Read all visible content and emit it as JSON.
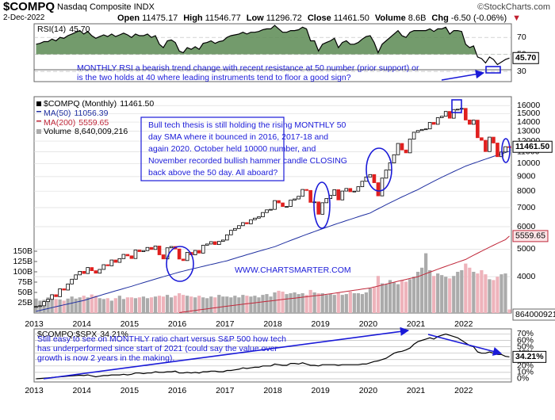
{
  "header": {
    "symbol": "$COMPQ",
    "name": "Nasdaq Composite INDX",
    "date": "2-Dec-2022",
    "quote": [
      {
        "label": "Open",
        "value": "11475.17"
      },
      {
        "label": "High",
        "value": "11546.77"
      },
      {
        "label": "Low",
        "value": "11296.72"
      },
      {
        "label": "Close",
        "value": "11461.50"
      },
      {
        "label": "Volume",
        "value": "8.6B"
      },
      {
        "label": "Chg",
        "value": "-6.50 (-0.06%)"
      }
    ],
    "credit": "©StockCharts.com"
  },
  "chart_data": [
    {
      "type": "line",
      "ylim": [
        18,
        86
      ],
      "yticks": [
        30,
        50,
        70
      ],
      "fill_color": "#5b8a52",
      "series": [
        {
          "name": "RSI(14)",
          "color": "#000000",
          "value_label": "45.70",
          "values": [
            62,
            63,
            65,
            65,
            68,
            66,
            70,
            69,
            72,
            74,
            76,
            78,
            74,
            77,
            72,
            69,
            71,
            73,
            71,
            74,
            71,
            73,
            75,
            73,
            70,
            74,
            72,
            72,
            74,
            70,
            72,
            62,
            58,
            66,
            67,
            64,
            54,
            52,
            58,
            56,
            59,
            56,
            63,
            64,
            66,
            63,
            65,
            66,
            70,
            72,
            73,
            74,
            76,
            74,
            76,
            76,
            77,
            79,
            80,
            80,
            84,
            80,
            76,
            76,
            78,
            78,
            79,
            82,
            80,
            66,
            66,
            54,
            62,
            64,
            66,
            69,
            58,
            64,
            66,
            62,
            62,
            64,
            68,
            71,
            72,
            64,
            52,
            62,
            66,
            70,
            74,
            78,
            72,
            70,
            76,
            78,
            78,
            78,
            78,
            80,
            77,
            80,
            80,
            82,
            74,
            78,
            78,
            77,
            62,
            58,
            60,
            47,
            45,
            40,
            47,
            44,
            38,
            41,
            44,
            45.7
          ]
        }
      ],
      "annotation": [
        "MONTHLY RSI a bearish trend change with recent resistance at 50 number (prior support) or",
        "is the two holds at 40 where leading instruments tend to floor a good sign?"
      ]
    },
    {
      "type": "candlestick",
      "log_scale": true,
      "grid": true,
      "ylim": [
        2980,
        17200
      ],
      "yticks": [
        4000,
        5000,
        6000,
        7000,
        8000,
        9000,
        10000,
        11000,
        12000,
        13000,
        14000,
        15000,
        16000
      ],
      "y2lim": [
        0,
        525
      ],
      "y2ticks": [
        {
          "value": 25,
          "label": "25B"
        },
        {
          "value": 50,
          "label": "50B"
        },
        {
          "value": 75,
          "label": "75B"
        },
        {
          "value": 100,
          "label": "100B"
        },
        {
          "value": 125,
          "label": "125B"
        },
        {
          "value": 150,
          "label": "150B"
        }
      ],
      "categories": [
        "2013",
        null,
        null,
        null,
        null,
        null,
        null,
        null,
        null,
        null,
        null,
        null,
        "2014",
        null,
        null,
        null,
        null,
        null,
        null,
        null,
        null,
        null,
        null,
        null,
        "2015",
        null,
        null,
        null,
        null,
        null,
        null,
        null,
        null,
        null,
        null,
        null,
        "2016",
        null,
        null,
        null,
        null,
        null,
        null,
        null,
        null,
        null,
        null,
        null,
        "2017",
        null,
        null,
        null,
        null,
        null,
        null,
        null,
        null,
        null,
        null,
        null,
        "2018",
        null,
        null,
        null,
        null,
        null,
        null,
        null,
        null,
        null,
        null,
        null,
        "2019",
        null,
        null,
        null,
        null,
        null,
        null,
        null,
        null,
        null,
        null,
        null,
        "2020",
        null,
        null,
        null,
        null,
        null,
        null,
        null,
        null,
        null,
        null,
        null,
        "2021",
        null,
        null,
        null,
        null,
        null,
        null,
        null,
        null,
        null,
        null,
        null,
        "2022",
        null,
        null,
        null,
        null,
        null,
        null,
        null,
        null,
        null,
        null,
        null
      ],
      "series": [
        {
          "name": "$COMPQ (Monthly)",
          "value_label": "11461.50",
          "color": "#000000",
          "down_color": "#e0201f",
          "values": [
            3142,
            3160,
            3268,
            3329,
            3456,
            3403,
            3626,
            3590,
            3771,
            3920,
            4060,
            4177,
            4104,
            4308,
            4199,
            4115,
            4243,
            4408,
            4370,
            4580,
            4493,
            4631,
            4792,
            4736,
            4635,
            4964,
            4901,
            4941,
            5070,
            4987,
            5128,
            4777,
            4620,
            5054,
            5109,
            5007,
            4614,
            4558,
            4870,
            4775,
            4948,
            4843,
            5162,
            5213,
            5312,
            5189,
            5324,
            5383,
            5615,
            5825,
            5912,
            6048,
            6199,
            6140,
            6348,
            6429,
            6496,
            6728,
            6874,
            6903,
            7411,
            7273,
            7063,
            7066,
            7442,
            7510,
            7672,
            8110,
            8046,
            7306,
            7331,
            6635,
            7282,
            7533,
            7729,
            8095,
            7453,
            8006,
            8175,
            7963,
            7999,
            8292,
            8665,
            8973,
            9151,
            8567,
            7700,
            8890,
            9490,
            10059,
            10745,
            11775,
            11168,
            10912,
            12199,
            12888,
            13071,
            13192,
            13247,
            13962,
            13749,
            14504,
            14673,
            15259,
            14449,
            15498,
            15538,
            15645,
            14240,
            13751,
            14221,
            12335,
            12081,
            11028,
            12391,
            11816,
            10576,
            10988,
            11468,
            11461.5
          ]
        },
        {
          "name": "MA(50)",
          "value_label": "11056.39",
          "color": "#1f2fa0",
          "values": [
            3020,
            3043,
            3067,
            3090,
            3113,
            3137,
            3160,
            3183,
            3207,
            3230,
            3253,
            3277,
            3300,
            3333,
            3367,
            3400,
            3433,
            3467,
            3500,
            3533,
            3567,
            3600,
            3633,
            3667,
            3700,
            3738,
            3775,
            3813,
            3850,
            3888,
            3925,
            3963,
            4000,
            4038,
            4075,
            4113,
            4150,
            4183,
            4217,
            4250,
            4283,
            4317,
            4350,
            4383,
            4417,
            4450,
            4483,
            4517,
            4550,
            4596,
            4642,
            4688,
            4733,
            4779,
            4825,
            4871,
            4917,
            4963,
            5008,
            5054,
            5100,
            5167,
            5233,
            5300,
            5367,
            5433,
            5500,
            5567,
            5633,
            5700,
            5767,
            5833,
            5900,
            5967,
            6033,
            6100,
            6167,
            6233,
            6300,
            6367,
            6433,
            6500,
            6567,
            6633,
            6700,
            6817,
            6933,
            7050,
            7167,
            7283,
            7400,
            7517,
            7633,
            7750,
            7867,
            7983,
            8100,
            8242,
            8383,
            8525,
            8667,
            8808,
            8950,
            9092,
            9233,
            9375,
            9517,
            9658,
            9800,
            9914,
            10028,
            10142,
            10256,
            10370,
            10484,
            10598,
            10712,
            10826,
            10940,
            11056.39
          ]
        },
        {
          "name": "MA(200)",
          "value_label": "5559.65",
          "color": "#c0283a",
          "values": [
            null,
            null,
            null,
            null,
            null,
            null,
            null,
            null,
            null,
            null,
            null,
            null,
            null,
            null,
            null,
            null,
            null,
            null,
            null,
            null,
            null,
            null,
            null,
            null,
            null,
            null,
            null,
            null,
            null,
            null,
            null,
            null,
            null,
            null,
            null,
            null,
            2990,
            3003,
            3017,
            3030,
            3043,
            3057,
            3070,
            3083,
            3097,
            3110,
            3123,
            3137,
            3150,
            3163,
            3175,
            3188,
            3200,
            3213,
            3225,
            3238,
            3250,
            3263,
            3275,
            3288,
            3300,
            3313,
            3325,
            3338,
            3350,
            3363,
            3375,
            3388,
            3400,
            3413,
            3425,
            3438,
            3450,
            3467,
            3483,
            3500,
            3517,
            3533,
            3550,
            3567,
            3583,
            3600,
            3617,
            3633,
            3650,
            3679,
            3708,
            3738,
            3767,
            3796,
            3825,
            3854,
            3883,
            3913,
            3942,
            3971,
            4000,
            4050,
            4100,
            4150,
            4200,
            4250,
            4300,
            4350,
            4400,
            4450,
            4500,
            4550,
            4600,
            4680,
            4760,
            4840,
            4920,
            5000,
            5080,
            5160,
            5240,
            5320,
            5400,
            5559.65
          ]
        },
        {
          "name": "Volume",
          "value_label": "8,640,009,216",
          "side_label": "8640009216",
          "axis": "y2",
          "color": "#ababab",
          "down_color": "#eeb3bb",
          "values": [
            35,
            30,
            32,
            38,
            36,
            34,
            33,
            30,
            35,
            40,
            35,
            38,
            42,
            38,
            45,
            42,
            36,
            34,
            36,
            30,
            36,
            42,
            34,
            38,
            38,
            36,
            38,
            40,
            36,
            38,
            40,
            42,
            40,
            44,
            38,
            42,
            48,
            44,
            42,
            40,
            38,
            42,
            38,
            36,
            40,
            38,
            44,
            40,
            40,
            38,
            42,
            38,
            44,
            42,
            40,
            42,
            38,
            44,
            46,
            40,
            50,
            54,
            52,
            46,
            48,
            50,
            46,
            48,
            44,
            56,
            50,
            48,
            48,
            44,
            46,
            44,
            50,
            44,
            46,
            52,
            48,
            48,
            46,
            50,
            60,
            64,
            90,
            72,
            70,
            80,
            74,
            70,
            80,
            76,
            82,
            88,
            100,
            110,
            145,
            104,
            90,
            96,
            92,
            88,
            84,
            90,
            100,
            104,
            120,
            110,
            100,
            96,
            104,
            94,
            82,
            80,
            88,
            94,
            96,
            8.64
          ]
        }
      ],
      "annotation": [
        "Bull tech thesis is still holding the rising MONTHLY 50",
        "day SMA where it bounced in 2016, 2017-18 and",
        "again 2020. October held 10000 number, and",
        "November recorded bullish hammer candle CLOSING",
        "back above the 50 day. All aboard?"
      ],
      "watermark": "WWW.CHARTSMARTER.COM"
    },
    {
      "type": "line",
      "ylim": [
        -5,
        78
      ],
      "yticks": [
        {
          "value": 0,
          "label": "0%"
        },
        {
          "value": 10,
          "label": "10%"
        },
        {
          "value": 20,
          "label": "20%"
        },
        {
          "value": 30,
          "label": "30%"
        },
        {
          "value": 40,
          "label": "40%"
        },
        {
          "value": 50,
          "label": "50%"
        },
        {
          "value": 60,
          "label": "60%"
        },
        {
          "value": 70,
          "label": "70%"
        }
      ],
      "categories": [
        "2013",
        null,
        null,
        null,
        null,
        null,
        null,
        null,
        null,
        null,
        null,
        null,
        "2014",
        null,
        null,
        null,
        null,
        null,
        null,
        null,
        null,
        null,
        null,
        null,
        "2015",
        null,
        null,
        null,
        null,
        null,
        null,
        null,
        null,
        null,
        null,
        null,
        "2016",
        null,
        null,
        null,
        null,
        null,
        null,
        null,
        null,
        null,
        null,
        null,
        "2017",
        null,
        null,
        null,
        null,
        null,
        null,
        null,
        null,
        null,
        null,
        null,
        "2018",
        null,
        null,
        null,
        null,
        null,
        null,
        null,
        null,
        null,
        null,
        null,
        "2019",
        null,
        null,
        null,
        null,
        null,
        null,
        null,
        null,
        null,
        null,
        null,
        "2020",
        null,
        null,
        null,
        null,
        null,
        null,
        null,
        null,
        null,
        null,
        null,
        "2021",
        null,
        null,
        null,
        null,
        null,
        null,
        null,
        null,
        null,
        null,
        null,
        "2022",
        null,
        null,
        null,
        null,
        null,
        null,
        null,
        null,
        null,
        null,
        null
      ],
      "series": [
        {
          "name": "$COMPQ:$SPX",
          "value_label": "34.21%",
          "color": "#000000",
          "values": [
            0,
            0.5,
            1,
            1.5,
            2,
            2.5,
            3,
            3.5,
            4,
            4.5,
            5,
            5.5,
            5,
            6,
            4.5,
            3,
            4,
            5,
            5,
            6,
            6,
            6,
            7,
            6,
            7,
            9,
            9,
            8,
            9,
            9,
            11,
            10,
            10,
            11,
            11,
            12,
            9,
            9,
            10,
            9,
            10,
            9,
            11,
            11,
            12,
            12,
            11,
            11,
            13,
            13,
            14,
            15,
            17,
            16,
            17,
            18,
            18,
            20,
            20,
            20,
            23,
            22,
            21,
            21,
            24,
            24,
            23,
            25,
            23,
            21,
            21,
            20,
            22,
            22,
            22,
            22,
            21,
            22,
            22,
            22,
            22,
            22,
            23,
            23,
            25,
            27,
            28,
            30,
            32,
            36,
            40,
            42,
            43,
            45,
            48,
            54,
            58,
            60,
            62,
            64,
            62,
            66,
            68,
            70,
            68,
            66,
            64,
            60,
            56,
            52,
            50,
            42,
            40,
            40,
            42,
            40,
            38,
            38,
            35,
            34.21
          ]
        }
      ],
      "annotation": [
        "Still easy to see on MONTHLY ratio chart versus S&P 500 how tech",
        "has underperformed since start of 2021 (could say the value over",
        "growth is now 2 years in the making)."
      ]
    }
  ]
}
